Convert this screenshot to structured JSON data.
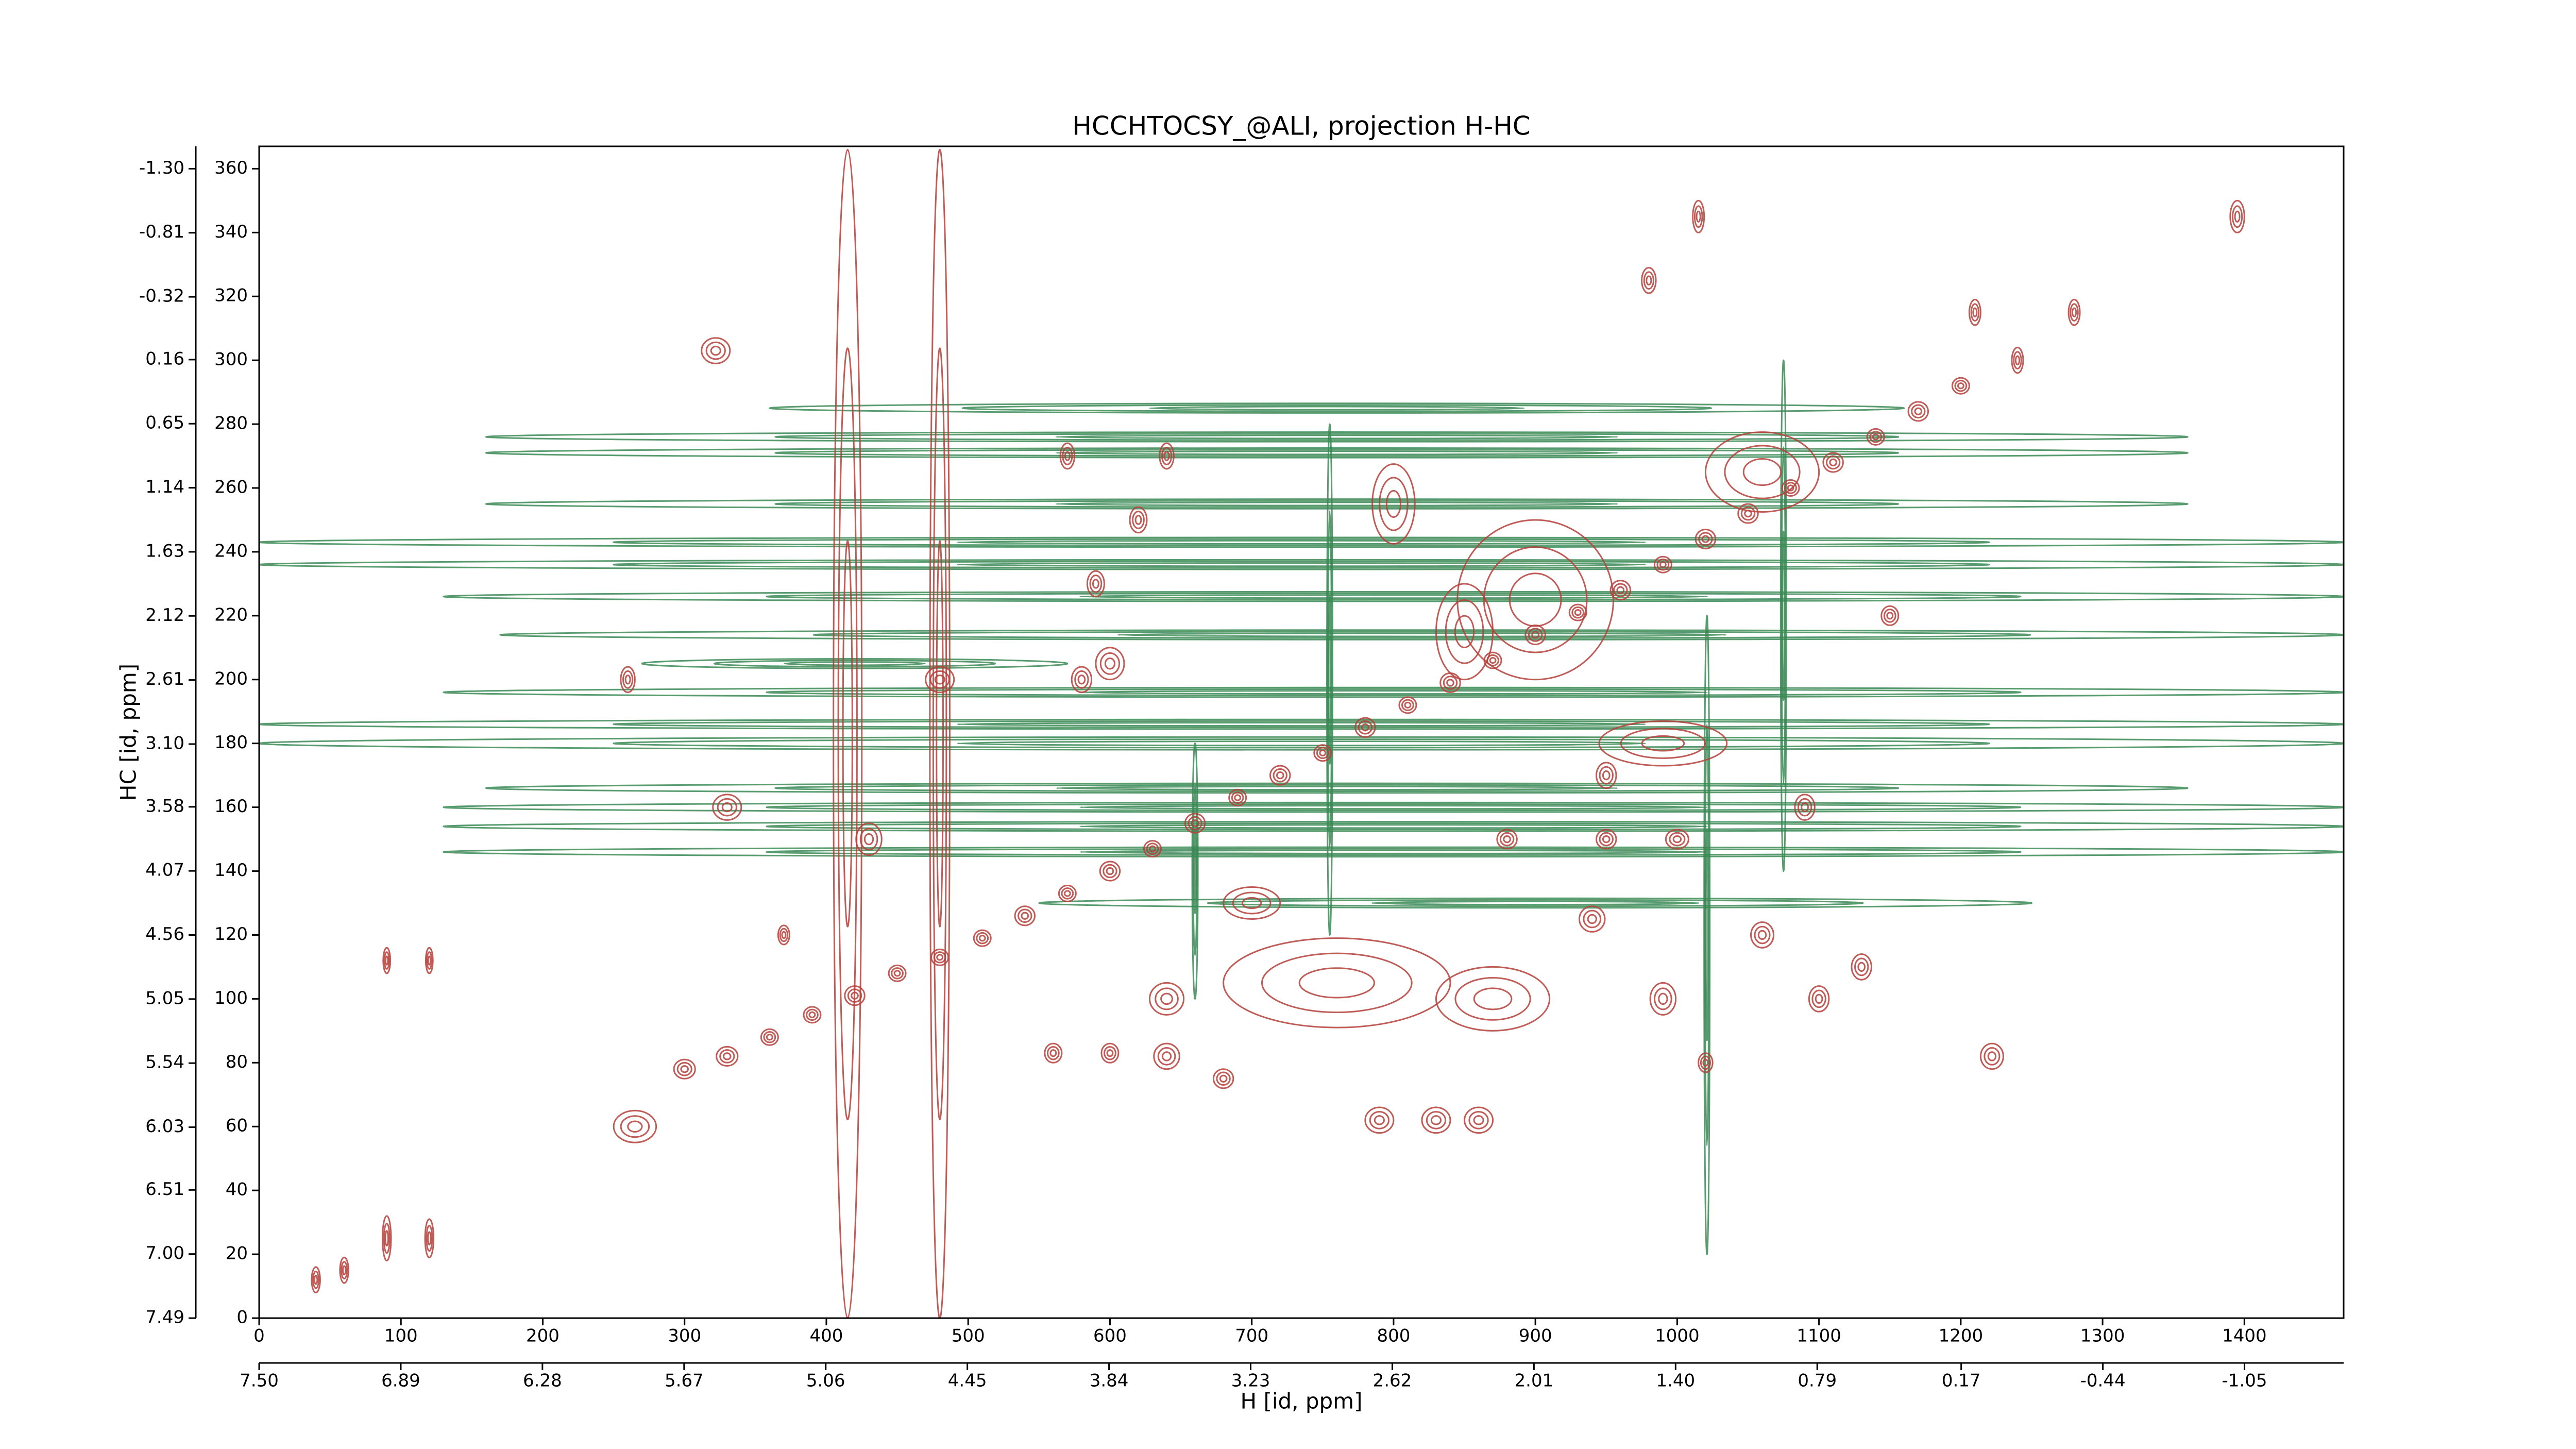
{
  "chart_data": {
    "type": "contour",
    "title": "HCCHTOCSY_@ALI, projection H-HC",
    "xlabel": "H [id, ppm]",
    "ylabel": "HC [id, ppm]",
    "xlim": [
      0,
      1470
    ],
    "xticks": [
      0,
      100,
      200,
      300,
      400,
      500,
      600,
      700,
      800,
      900,
      1000,
      1100,
      1200,
      1300,
      1400
    ],
    "ylim": [
      0,
      367
    ],
    "yticks": [
      0,
      20,
      40,
      60,
      80,
      100,
      120,
      140,
      160,
      180,
      200,
      220,
      240,
      260,
      280,
      300,
      320,
      340,
      360
    ],
    "x2lim": [
      7.5,
      -1.477
    ],
    "x2ticks": [
      {
        "value": 7.5,
        "label": "7.50"
      },
      6.89,
      6.28,
      5.67,
      5.06,
      4.45,
      3.84,
      3.23,
      2.62,
      2.01,
      {
        "value": 1.4,
        "label": "1.40"
      },
      0.79,
      0.17,
      -0.44,
      -1.05
    ],
    "y2lim": [
      7.49,
      -1.471
    ],
    "y2ticks": [
      7.49,
      {
        "value": 7,
        "label": "7.00"
      },
      6.51,
      6.03,
      5.54,
      5.05,
      4.56,
      4.07,
      3.58,
      {
        "value": 3.1,
        "label": "3.10"
      },
      2.61,
      2.12,
      1.63,
      1.14,
      0.65,
      0.16,
      -0.32,
      -0.81,
      {
        "value": -1.3,
        "label": "-1.30"
      }
    ],
    "series": [
      {
        "color": "#3a8a55",
        "x": [
          735,
          735,
          800,
          820,
          800,
          735,
          735,
          760,
          760,
          760,
          800,
          800,
          800,
          900,
          760,
          420,
          760,
          1021,
          755,
          660,
          1075
        ],
        "y": [
          180,
          186,
          196,
          214,
          226,
          236,
          243,
          255,
          271,
          276,
          160,
          154,
          146,
          130,
          166,
          205,
          285,
          120,
          200,
          140,
          220
        ],
        "w": [
          1470,
          1470,
          1340,
          1300,
          1340,
          1470,
          1470,
          1200,
          1200,
          1200,
          1340,
          1340,
          1340,
          700,
          1200,
          300,
          800,
          4,
          4,
          4,
          4
        ],
        "h": [
          4,
          3,
          3,
          3,
          3,
          3,
          3,
          3,
          3,
          3,
          3,
          3,
          3,
          3,
          3,
          3,
          3,
          200,
          160,
          80,
          160
        ]
      },
      {
        "color": "#b5403a",
        "x": [
          300,
          330,
          360,
          390,
          420,
          450,
          480,
          510,
          540,
          570,
          600,
          630,
          660,
          690,
          720,
          750,
          780,
          810,
          840,
          870,
          900,
          930,
          960,
          990,
          1020,
          1050,
          1080,
          1110,
          1140,
          1170,
          1200,
          900,
          990,
          760,
          870,
          1060,
          800,
          850,
          640,
          600,
          560,
          680,
          790,
          830,
          860,
          265,
          1222,
          1395,
          1015,
          322,
          40,
          60,
          90,
          120,
          90,
          120,
          1000,
          950,
          880,
          600,
          580,
          620,
          590,
          1150,
          1060,
          1130,
          1020,
          1240,
          1280,
          1210,
          980,
          1090,
          950,
          430,
          330,
          480,
          640,
          700,
          940,
          990,
          1100,
          370,
          260,
          570,
          640,
          415,
          480
        ],
        "y": [
          78,
          82,
          88,
          95,
          101,
          108,
          113,
          119,
          126,
          133,
          140,
          147,
          155,
          163,
          170,
          177,
          185,
          192,
          199,
          206,
          214,
          221,
          228,
          236,
          244,
          252,
          260,
          268,
          276,
          284,
          292,
          225,
          180,
          105,
          100,
          265,
          255,
          215,
          82,
          83,
          83,
          75,
          62,
          62,
          62,
          60,
          82,
          345,
          345,
          303,
          12,
          15,
          25,
          25,
          112,
          112,
          150,
          150,
          150,
          205,
          200,
          250,
          230,
          220,
          120,
          110,
          80,
          300,
          315,
          315,
          325,
          160,
          170,
          150,
          160,
          200,
          100,
          130,
          125,
          100,
          100,
          120,
          200,
          270,
          270,
          183,
          183
        ],
        "w": [
          15,
          15,
          12,
          12,
          14,
          12,
          12,
          12,
          14,
          12,
          14,
          12,
          14,
          12,
          14,
          12,
          14,
          12,
          14,
          12,
          14,
          12,
          14,
          12,
          14,
          14,
          12,
          14,
          12,
          14,
          12,
          110,
          90,
          160,
          80,
          80,
          30,
          40,
          18,
          12,
          12,
          14,
          20,
          20,
          20,
          30,
          16,
          10,
          8,
          20,
          6,
          6,
          6,
          6,
          5,
          5,
          16,
          14,
          14,
          20,
          14,
          12,
          12,
          12,
          16,
          14,
          10,
          8,
          8,
          8,
          10,
          14,
          14,
          18,
          20,
          20,
          24,
          40,
          18,
          18,
          14,
          8,
          10,
          10,
          10,
          20,
          14
        ],
        "h": [
          6,
          6,
          5,
          5,
          6,
          5,
          5,
          5,
          6,
          5,
          6,
          5,
          6,
          5,
          6,
          5,
          6,
          5,
          6,
          5,
          6,
          5,
          6,
          5,
          6,
          6,
          5,
          6,
          5,
          6,
          5,
          50,
          14,
          28,
          20,
          25,
          25,
          30,
          8,
          6,
          6,
          6,
          8,
          8,
          8,
          10,
          8,
          10,
          10,
          8,
          8,
          8,
          14,
          12,
          8,
          8,
          6,
          6,
          6,
          10,
          8,
          8,
          8,
          6,
          8,
          8,
          6,
          8,
          8,
          8,
          8,
          8,
          8,
          10,
          8,
          8,
          10,
          10,
          8,
          10,
          8,
          6,
          8,
          8,
          8,
          366,
          366
        ]
      }
    ]
  }
}
